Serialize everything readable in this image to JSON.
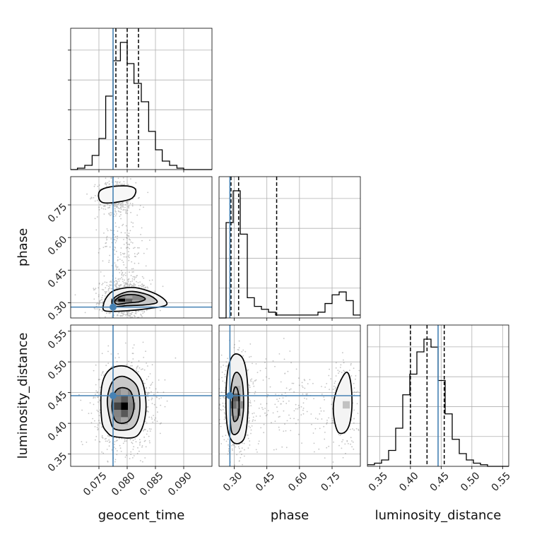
{
  "chart_data": {
    "type": "corner",
    "parameters": [
      "geocent_time",
      "phase",
      "luminosity_distance"
    ],
    "truths": {
      "geocent_time": 0.0775,
      "phase": 0.28,
      "luminosity_distance": 0.445
    },
    "quantiles": {
      "geocent_time": [
        0.078,
        0.08,
        0.082
      ],
      "phase": [
        0.285,
        0.32,
        0.495
      ],
      "luminosity_distance": [
        0.4,
        0.427,
        0.455
      ]
    },
    "ranges": {
      "geocent_time": [
        0.07,
        0.095
      ],
      "phase": [
        0.23,
        0.88
      ],
      "luminosity_distance": [
        0.33,
        0.56
      ]
    },
    "ticks": {
      "geocent_time": [
        "0.075",
        "0.080",
        "0.085",
        "0.090"
      ],
      "phase": [
        "0.30",
        "0.45",
        "0.60",
        "0.75"
      ],
      "luminosity_distance": [
        "0.35",
        "0.40",
        "0.45",
        "0.50",
        "0.55"
      ]
    },
    "axis_labels": {
      "x": [
        "geocent_time",
        "phase",
        "luminosity_distance"
      ],
      "y": [
        "",
        "phase",
        "luminosity_distance"
      ]
    },
    "histograms": {
      "geocent_time": {
        "edges": [
          0.07,
          0.0712,
          0.0725,
          0.0738,
          0.075,
          0.0762,
          0.0775,
          0.0788,
          0.08,
          0.0812,
          0.0825,
          0.0838,
          0.085,
          0.0862,
          0.0875,
          0.0888,
          0.09,
          0.0912,
          0.0925,
          0.0938,
          0.095
        ],
        "counts": [
          0,
          1,
          3,
          10,
          22,
          52,
          77,
          90,
          75,
          61,
          48,
          27,
          14,
          6,
          3,
          1,
          0,
          0,
          0,
          0
        ]
      },
      "phase": {
        "edges": [
          0.23,
          0.2625,
          0.295,
          0.3275,
          0.36,
          0.3925,
          0.425,
          0.4575,
          0.49,
          0.5225,
          0.555,
          0.5875,
          0.62,
          0.6525,
          0.685,
          0.7175,
          0.75,
          0.7825,
          0.815,
          0.8475,
          0.88
        ],
        "counts": [
          0,
          33,
          44,
          29,
          7,
          4,
          3,
          2,
          1,
          1,
          1,
          1,
          1,
          1,
          2,
          5,
          8,
          9,
          6,
          1
        ]
      },
      "luminosity_distance": {
        "edges": [
          0.33,
          0.3415,
          0.353,
          0.3645,
          0.376,
          0.3875,
          0.399,
          0.4105,
          0.422,
          0.4335,
          0.445,
          0.4565,
          0.468,
          0.4795,
          0.491,
          0.5025,
          0.514,
          0.5255,
          0.537,
          0.5485,
          0.56
        ],
        "counts": [
          1,
          2,
          4,
          10,
          24,
          45,
          58,
          72,
          80,
          75,
          54,
          33,
          17,
          8,
          4,
          2,
          1,
          0,
          0,
          0
        ]
      }
    },
    "contours": {
      "phase_vs_geocent_time": [
        {
          "level": "inner",
          "points": [
            [
              0.0783,
              0.293
            ],
            [
              0.08,
              0.299
            ],
            [
              0.0822,
              0.305
            ],
            [
              0.0832,
              0.318
            ],
            [
              0.082,
              0.334
            ],
            [
              0.08,
              0.337
            ],
            [
              0.0785,
              0.325
            ],
            [
              0.0778,
              0.305
            ]
          ]
        },
        {
          "level": "middle",
          "points": [
            [
              0.0778,
              0.282
            ],
            [
              0.08,
              0.287
            ],
            [
              0.083,
              0.29
            ],
            [
              0.0853,
              0.302
            ],
            [
              0.084,
              0.333
            ],
            [
              0.081,
              0.352
            ],
            [
              0.079,
              0.342
            ],
            [
              0.0776,
              0.32
            ],
            [
              0.0773,
              0.298
            ]
          ]
        },
        {
          "level": "outer",
          "points": [
            [
              0.0762,
              0.262
            ],
            [
              0.08,
              0.263
            ],
            [
              0.084,
              0.274
            ],
            [
              0.087,
              0.292
            ],
            [
              0.0855,
              0.335
            ],
            [
              0.0815,
              0.369
            ],
            [
              0.078,
              0.359
            ],
            [
              0.0765,
              0.33
            ],
            [
              0.0758,
              0.29
            ]
          ]
        },
        {
          "level": "upper",
          "points": [
            [
              0.0758,
              0.76
            ],
            [
              0.078,
              0.762
            ],
            [
              0.0808,
              0.78
            ],
            [
              0.0815,
              0.82
            ],
            [
              0.08,
              0.837
            ],
            [
              0.077,
              0.833
            ],
            [
              0.0752,
              0.815
            ],
            [
              0.075,
              0.78
            ]
          ]
        }
      ],
      "luminosity_distance_vs_geocent_time": [
        {
          "level": "inner",
          "points": [
            [
              0.079,
              0.4
            ],
            [
              0.0805,
              0.406
            ],
            [
              0.0812,
              0.428
            ],
            [
              0.0806,
              0.452
            ],
            [
              0.079,
              0.458
            ],
            [
              0.0778,
              0.45
            ],
            [
              0.0773,
              0.428
            ],
            [
              0.0778,
              0.406
            ]
          ]
        },
        {
          "level": "middle",
          "points": [
            [
              0.078,
              0.39
            ],
            [
              0.081,
              0.393
            ],
            [
              0.0822,
              0.42
            ],
            [
              0.0818,
              0.459
            ],
            [
              0.0795,
              0.476
            ],
            [
              0.0775,
              0.469
            ],
            [
              0.0765,
              0.44
            ],
            [
              0.077,
              0.405
            ]
          ]
        },
        {
          "level": "outer",
          "points": [
            [
              0.078,
              0.378
            ],
            [
              0.0818,
              0.38
            ],
            [
              0.0833,
              0.42
            ],
            [
              0.0826,
              0.469
            ],
            [
              0.08,
              0.492
            ],
            [
              0.077,
              0.488
            ],
            [
              0.0755,
              0.46
            ],
            [
              0.0755,
              0.405
            ],
            [
              0.0765,
              0.385
            ]
          ]
        }
      ],
      "luminosity_distance_vs_phase": [
        {
          "level": "inner",
          "points": [
            [
              0.3,
              0.403
            ],
            [
              0.318,
              0.41
            ],
            [
              0.322,
              0.435
            ],
            [
              0.315,
              0.455
            ],
            [
              0.302,
              0.458
            ],
            [
              0.292,
              0.44
            ],
            [
              0.293,
              0.415
            ]
          ]
        },
        {
          "level": "middle",
          "points": [
            [
              0.292,
              0.383
            ],
            [
              0.322,
              0.388
            ],
            [
              0.342,
              0.42
            ],
            [
              0.338,
              0.465
            ],
            [
              0.318,
              0.482
            ],
            [
              0.298,
              0.478
            ],
            [
              0.284,
              0.45
            ],
            [
              0.282,
              0.405
            ]
          ]
        },
        {
          "level": "outer",
          "points": [
            [
              0.3,
              0.368
            ],
            [
              0.345,
              0.375
            ],
            [
              0.362,
              0.415
            ],
            [
              0.36,
              0.47
            ],
            [
              0.34,
              0.505
            ],
            [
              0.3,
              0.512
            ],
            [
              0.272,
              0.49
            ],
            [
              0.262,
              0.44
            ],
            [
              0.27,
              0.39
            ]
          ]
        },
        {
          "level": "right",
          "points": [
            [
              0.78,
              0.385
            ],
            [
              0.82,
              0.39
            ],
            [
              0.84,
              0.42
            ],
            [
              0.838,
              0.46
            ],
            [
              0.82,
              0.483
            ],
            [
              0.79,
              0.47
            ],
            [
              0.76,
              0.44
            ],
            [
              0.758,
              0.41
            ]
          ]
        }
      ]
    },
    "density_cells": {
      "phase_vs_geocent_time": [
        [
          0.079,
          0.312,
          1.0
        ],
        [
          0.0778,
          0.312,
          0.55
        ],
        [
          0.0803,
          0.312,
          0.55
        ],
        [
          0.079,
          0.298,
          0.35
        ],
        [
          0.079,
          0.326,
          0.35
        ],
        [
          0.0815,
          0.305,
          0.25
        ],
        [
          0.0803,
          0.326,
          0.25
        ],
        [
          0.0778,
          0.298,
          0.2
        ]
      ],
      "luminosity_distance_vs_geocent_time": [
        [
          0.0795,
          0.428,
          1.0
        ],
        [
          0.0783,
          0.428,
          0.7
        ],
        [
          0.0795,
          0.44,
          0.6
        ],
        [
          0.0795,
          0.416,
          0.6
        ],
        [
          0.0783,
          0.44,
          0.45
        ],
        [
          0.0808,
          0.428,
          0.4
        ],
        [
          0.0783,
          0.416,
          0.4
        ],
        [
          0.0795,
          0.404,
          0.25
        ],
        [
          0.0795,
          0.452,
          0.25
        ]
      ],
      "luminosity_distance_vs_phase": [
        [
          0.312,
          0.43,
          1.0
        ],
        [
          0.312,
          0.442,
          0.6
        ],
        [
          0.312,
          0.418,
          0.55
        ],
        [
          0.298,
          0.43,
          0.5
        ],
        [
          0.325,
          0.43,
          0.35
        ],
        [
          0.298,
          0.418,
          0.25
        ],
        [
          0.312,
          0.455,
          0.2
        ],
        [
          0.815,
          0.43,
          0.12
        ]
      ]
    },
    "colors": {
      "truth": "#4682b4",
      "hist": "#000000",
      "grid": "#b0b0b0",
      "contour": "#000000"
    },
    "grid": true
  }
}
